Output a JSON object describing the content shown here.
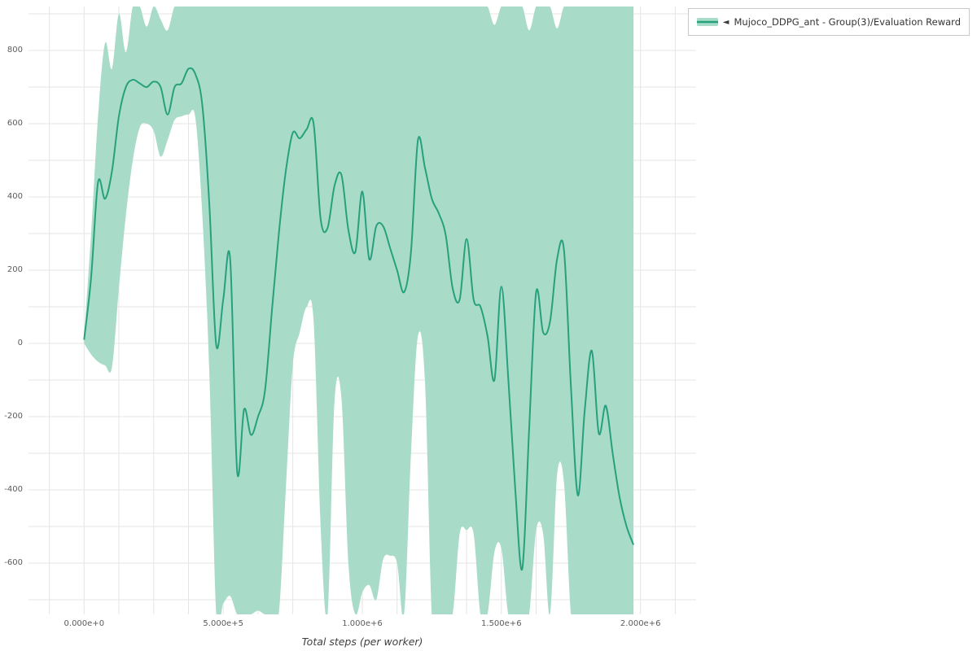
{
  "page": {
    "background": "#ffffff"
  },
  "legend": {
    "collapse_icon": "◄",
    "label": "Mujoco_DDPG_ant - Group(3)/Evaluation Reward",
    "line_color": "#26a17c",
    "band_color": "#a9dcc8",
    "border_color": "#c9c9c9"
  },
  "grid": {
    "color": "#e5e5e5"
  },
  "axes": {
    "x": {
      "title": "Total steps (per worker)",
      "range": [
        -200000,
        2200000
      ],
      "minor_step": 125000,
      "ticks": [
        {
          "value": 0,
          "label": "0.000e+0"
        },
        {
          "value": 500000,
          "label": "5.000e+5"
        },
        {
          "value": 1000000,
          "label": "1.000e+6"
        },
        {
          "value": 1500000,
          "label": "1.500e+6"
        },
        {
          "value": 2000000,
          "label": "2.000e+6"
        }
      ]
    },
    "y": {
      "range": [
        -740,
        920
      ],
      "minor_step": 100,
      "ticks": [
        {
          "value": 800,
          "label": "800"
        },
        {
          "value": 600,
          "label": "600"
        },
        {
          "value": 400,
          "label": "400"
        },
        {
          "value": 200,
          "label": "200"
        },
        {
          "value": 0,
          "label": "0"
        },
        {
          "value": -200,
          "label": "-200"
        },
        {
          "value": -400,
          "label": "-400"
        },
        {
          "value": -600,
          "label": "-600"
        }
      ]
    }
  },
  "chart_data": {
    "type": "line",
    "title": "",
    "xlabel": "Total steps (per worker)",
    "ylabel": "",
    "xlim": [
      -200000,
      2200000
    ],
    "ylim": [
      -740,
      920
    ],
    "grid": true,
    "legend_position": "outside-top-right",
    "x": [
      0,
      25000,
      50000,
      75000,
      100000,
      125000,
      150000,
      175000,
      200000,
      225000,
      250000,
      275000,
      300000,
      325000,
      350000,
      375000,
      400000,
      425000,
      450000,
      475000,
      500000,
      525000,
      550000,
      575000,
      600000,
      625000,
      650000,
      675000,
      700000,
      725000,
      750000,
      775000,
      800000,
      825000,
      850000,
      875000,
      900000,
      925000,
      950000,
      975000,
      1000000,
      1025000,
      1050000,
      1075000,
      1100000,
      1125000,
      1150000,
      1175000,
      1200000,
      1225000,
      1250000,
      1275000,
      1300000,
      1325000,
      1350000,
      1375000,
      1400000,
      1425000,
      1450000,
      1475000,
      1500000,
      1525000,
      1550000,
      1575000,
      1600000,
      1625000,
      1650000,
      1675000,
      1700000,
      1725000,
      1750000,
      1775000,
      1800000,
      1825000,
      1850000,
      1875000,
      1900000,
      1925000,
      1950000,
      1975000
    ],
    "series": [
      {
        "name": "Mujoco_DDPG_ant - Group(3)/Evaluation Reward",
        "color": "#26a17c",
        "band_color": "#a9dcc8",
        "mean": [
          10,
          180,
          440,
          395,
          470,
          620,
          700,
          720,
          710,
          700,
          715,
          700,
          625,
          700,
          710,
          750,
          735,
          650,
          380,
          -5,
          120,
          230,
          -350,
          -180,
          -250,
          -200,
          -130,
          90,
          300,
          470,
          575,
          560,
          585,
          600,
          340,
          315,
          430,
          460,
          310,
          250,
          415,
          230,
          320,
          320,
          260,
          200,
          140,
          250,
          555,
          480,
          395,
          355,
          295,
          150,
          120,
          285,
          120,
          100,
          20,
          -100,
          155,
          -100,
          -400,
          -615,
          -230,
          140,
          30,
          60,
          230,
          255,
          -120,
          -415,
          -180,
          -20,
          -245,
          -170,
          -300,
          -420,
          -500,
          -550
        ],
        "band_upper": [
          20,
          300,
          620,
          820,
          750,
          900,
          795,
          920,
          920,
          865,
          920,
          885,
          855,
          920,
          920,
          920,
          920,
          920,
          920,
          920,
          920,
          920,
          920,
          920,
          920,
          920,
          920,
          920,
          920,
          920,
          920,
          920,
          920,
          920,
          920,
          920,
          920,
          920,
          920,
          920,
          920,
          920,
          920,
          920,
          920,
          920,
          920,
          920,
          920,
          920,
          920,
          920,
          920,
          920,
          920,
          920,
          920,
          920,
          920,
          870,
          920,
          920,
          920,
          920,
          855,
          920,
          920,
          920,
          860,
          920,
          920,
          920,
          920,
          920,
          920,
          920,
          920,
          920,
          920,
          920
        ],
        "band_lower": [
          0,
          -30,
          -50,
          -60,
          -65,
          150,
          350,
          500,
          590,
          600,
          580,
          510,
          555,
          610,
          620,
          625,
          615,
          350,
          -80,
          -740,
          -710,
          -690,
          -740,
          -740,
          -740,
          -730,
          -740,
          -740,
          -740,
          -400,
          -60,
          30,
          100,
          60,
          -500,
          -740,
          -160,
          -150,
          -600,
          -740,
          -680,
          -660,
          -700,
          -590,
          -580,
          -600,
          -740,
          -300,
          20,
          -100,
          -740,
          -740,
          -740,
          -740,
          -520,
          -510,
          -520,
          -740,
          -740,
          -570,
          -560,
          -740,
          -740,
          -740,
          -740,
          -510,
          -520,
          -740,
          -360,
          -380,
          -740,
          -740,
          -740,
          -740,
          -740,
          -740,
          -740,
          -740,
          -740,
          -740
        ]
      }
    ]
  }
}
